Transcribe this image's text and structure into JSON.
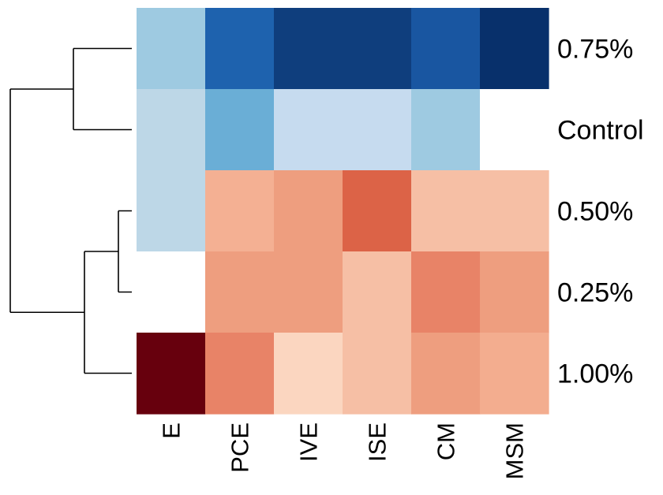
{
  "chart_data": {
    "type": "heatmap",
    "title": "",
    "rows": [
      "0.75%",
      "Control",
      "0.50%",
      "0.25%",
      "1.00%"
    ],
    "columns": [
      "E",
      "PCE",
      "IVE",
      "ISE",
      "CM",
      "MSM"
    ],
    "value_scale": "diverging blue (negative) – white (0) – red (positive), estimated, range -1 to 1",
    "values": [
      [
        -0.35,
        -0.8,
        -0.92,
        -0.92,
        -0.82,
        -1.0
      ],
      [
        -0.2,
        -0.55,
        -0.18,
        -0.18,
        -0.35,
        0.0
      ],
      [
        -0.2,
        0.32,
        0.42,
        0.62,
        0.25,
        0.25
      ],
      [
        0.0,
        0.42,
        0.42,
        0.25,
        0.52,
        0.42
      ],
      [
        1.0,
        0.52,
        0.15,
        0.25,
        0.42,
        0.35
      ]
    ],
    "colors": {
      "-1.00": "#08306b",
      "-0.92": "#0f3e7d",
      "-0.82": "#1956a1",
      "-0.80": "#1e62ae",
      "-0.55": "#6aaed6",
      "-0.35": "#9ecae1",
      "-0.20": "#bdd7e7",
      "-0.18": "#c6dbef",
      "0.00": "#ffffff",
      "0.15": "#fbd6c0",
      "0.25": "#f6bfa5",
      "0.32": "#f4b093",
      "0.35": "#f3ad8f",
      "0.42": "#ee9e7f",
      "0.52": "#e88367",
      "0.62": "#dc6347",
      "1.00": "#67000d"
    },
    "row_dendrogram": {
      "clusters": [
        [
          "0.75%",
          "Control"
        ],
        [
          [
            "0.50%",
            "0.25%"
          ],
          "1.00%"
        ]
      ]
    },
    "legend": "none"
  }
}
